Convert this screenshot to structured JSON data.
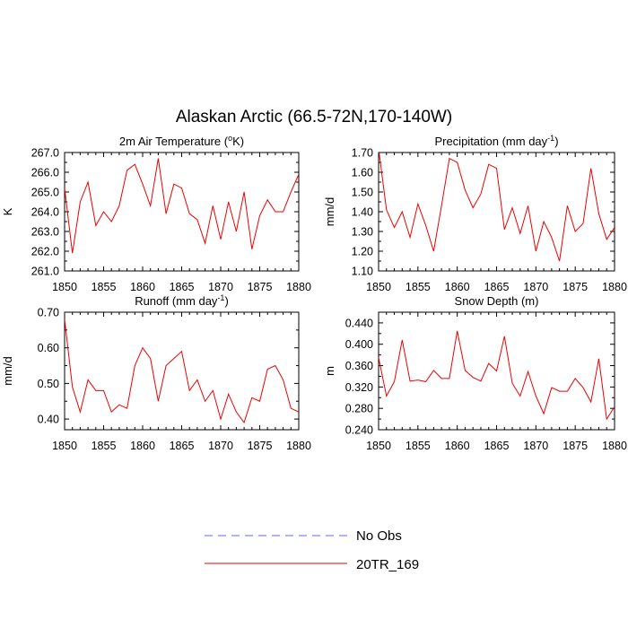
{
  "figure": {
    "title": "Alaskan Arctic (66.5-72N,170-140W)",
    "legend": [
      {
        "label": "No Obs",
        "color": "#6666ee",
        "style": "dashed"
      },
      {
        "label": "20TR_169",
        "color": "#ee0000",
        "style": "solid"
      }
    ]
  },
  "chart_data": [
    {
      "type": "line",
      "title": "2m Air Temperature (°K)",
      "title_base": "2m Air Temperature (",
      "title_sup": "o",
      "title_end": "K)",
      "xlabel": "",
      "ylabel": "K",
      "xlim": [
        1850,
        1880
      ],
      "ylim": [
        261.0,
        267.0
      ],
      "xticks": [
        "1850",
        "1855",
        "1860",
        "1865",
        "1870",
        "1875",
        "1880"
      ],
      "yticks": [
        "261.0",
        "262.0",
        "263.0",
        "264.0",
        "265.0",
        "266.0",
        "267.0"
      ],
      "x": [
        1850,
        1851,
        1852,
        1853,
        1854,
        1855,
        1856,
        1857,
        1858,
        1859,
        1860,
        1861,
        1862,
        1863,
        1864,
        1865,
        1866,
        1867,
        1868,
        1869,
        1870,
        1871,
        1872,
        1873,
        1874,
        1875,
        1876,
        1877,
        1878,
        1879,
        1880
      ],
      "series": [
        {
          "name": "20TR_169",
          "color": "#ee0000",
          "values": [
            265.2,
            261.9,
            264.5,
            265.5,
            263.3,
            264.0,
            263.5,
            264.3,
            266.1,
            266.4,
            265.4,
            264.3,
            266.7,
            263.9,
            265.4,
            265.2,
            263.9,
            263.6,
            262.4,
            264.3,
            262.6,
            264.5,
            263.0,
            265.0,
            262.1,
            263.8,
            264.6,
            264.0,
            264.0,
            265.0,
            265.9
          ]
        }
      ]
    },
    {
      "type": "line",
      "title": "Precipitation (mm day⁻¹)",
      "title_base": "Precipitation (mm day",
      "title_sup": "-1",
      "title_end": ")",
      "xlabel": "",
      "ylabel": "mm/d",
      "xlim": [
        1850,
        1880
      ],
      "ylim": [
        1.1,
        1.7
      ],
      "xticks": [
        "1850",
        "1855",
        "1860",
        "1865",
        "1870",
        "1875",
        "1880"
      ],
      "yticks": [
        "1.10",
        "1.20",
        "1.30",
        "1.40",
        "1.50",
        "1.60",
        "1.70"
      ],
      "x": [
        1850,
        1851,
        1852,
        1853,
        1854,
        1855,
        1856,
        1857,
        1858,
        1859,
        1860,
        1861,
        1862,
        1863,
        1864,
        1865,
        1866,
        1867,
        1868,
        1869,
        1870,
        1871,
        1872,
        1873,
        1874,
        1875,
        1876,
        1877,
        1878,
        1879,
        1880
      ],
      "series": [
        {
          "name": "20TR_169",
          "color": "#ee0000",
          "values": [
            1.72,
            1.41,
            1.32,
            1.4,
            1.27,
            1.44,
            1.33,
            1.2,
            1.43,
            1.67,
            1.65,
            1.51,
            1.42,
            1.49,
            1.64,
            1.62,
            1.31,
            1.42,
            1.29,
            1.43,
            1.2,
            1.35,
            1.27,
            1.15,
            1.43,
            1.3,
            1.34,
            1.62,
            1.39,
            1.26,
            1.32
          ]
        }
      ]
    },
    {
      "type": "line",
      "title": "Runoff (mm day⁻¹)",
      "title_base": "Runoff (mm day",
      "title_sup": "-1",
      "title_end": ")",
      "xlabel": "",
      "ylabel": "mm/d",
      "xlim": [
        1850,
        1880
      ],
      "ylim": [
        0.37,
        0.7
      ],
      "xticks": [
        "1850",
        "1855",
        "1860",
        "1865",
        "1870",
        "1875",
        "1880"
      ],
      "ytick_values": [
        0.4,
        0.5,
        0.6,
        0.7
      ],
      "yticks": [
        "0.40",
        "0.50",
        "0.60",
        "0.70"
      ],
      "x": [
        1850,
        1851,
        1852,
        1853,
        1854,
        1855,
        1856,
        1857,
        1858,
        1859,
        1860,
        1861,
        1862,
        1863,
        1864,
        1865,
        1866,
        1867,
        1868,
        1869,
        1870,
        1871,
        1872,
        1873,
        1874,
        1875,
        1876,
        1877,
        1878,
        1879,
        1880
      ],
      "series": [
        {
          "name": "20TR_169",
          "color": "#ee0000",
          "values": [
            0.68,
            0.49,
            0.42,
            0.51,
            0.48,
            0.48,
            0.42,
            0.44,
            0.43,
            0.55,
            0.6,
            0.57,
            0.45,
            0.55,
            0.57,
            0.59,
            0.48,
            0.51,
            0.45,
            0.48,
            0.4,
            0.47,
            0.42,
            0.39,
            0.46,
            0.45,
            0.54,
            0.55,
            0.51,
            0.43,
            0.42
          ]
        }
      ]
    },
    {
      "type": "line",
      "title": "Snow Depth (m)",
      "title_base": "Snow Depth (m)",
      "title_sup": "",
      "title_end": "",
      "xlabel": "",
      "ylabel": "m",
      "xlim": [
        1850,
        1880
      ],
      "ylim": [
        0.24,
        0.46
      ],
      "xticks": [
        "1850",
        "1855",
        "1860",
        "1865",
        "1870",
        "1875",
        "1880"
      ],
      "ytick_values": [
        0.24,
        0.28,
        0.32,
        0.36,
        0.4,
        0.44
      ],
      "yticks": [
        "0.240",
        "0.280",
        "0.320",
        "0.360",
        "0.400",
        "0.440"
      ],
      "x": [
        1850,
        1851,
        1852,
        1853,
        1854,
        1855,
        1856,
        1857,
        1858,
        1859,
        1860,
        1861,
        1862,
        1863,
        1864,
        1865,
        1866,
        1867,
        1868,
        1869,
        1870,
        1871,
        1872,
        1873,
        1874,
        1875,
        1876,
        1877,
        1878,
        1879,
        1880
      ],
      "series": [
        {
          "name": "20TR_169",
          "color": "#ee0000",
          "values": [
            0.375,
            0.303,
            0.33,
            0.408,
            0.331,
            0.333,
            0.33,
            0.351,
            0.336,
            0.336,
            0.425,
            0.351,
            0.338,
            0.331,
            0.364,
            0.35,
            0.415,
            0.327,
            0.303,
            0.349,
            0.303,
            0.27,
            0.319,
            0.312,
            0.312,
            0.336,
            0.319,
            0.292,
            0.373,
            0.26,
            0.283
          ]
        }
      ]
    }
  ]
}
